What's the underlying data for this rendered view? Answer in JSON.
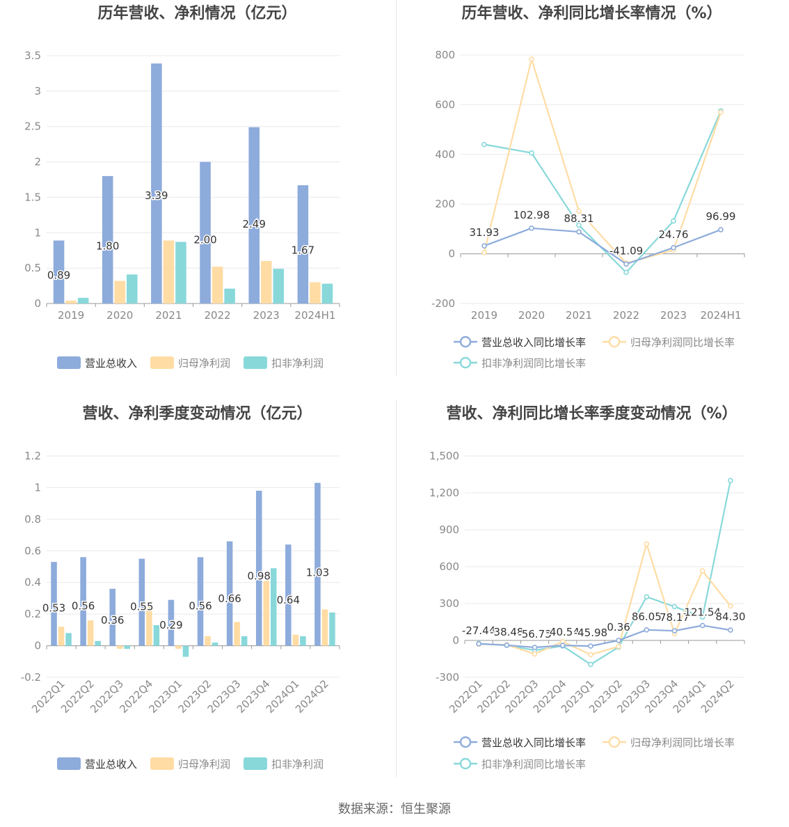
{
  "colors": {
    "revenue": "#8dabdb",
    "net_profit": "#ffdca4",
    "deducted_profit": "#88d8da",
    "grid": "#e8e8ee",
    "axis_text": "#888888",
    "title_text": "#444444",
    "label_text": "#333333"
  },
  "source": "数据来源：恒生聚源",
  "chart_data": [
    {
      "type": "bar",
      "title": "历年营收、净利情况（亿元）",
      "categories": [
        "2019",
        "2020",
        "2021",
        "2022",
        "2023",
        "2024H1"
      ],
      "ylim": [
        0,
        3.5
      ],
      "yticks": [
        0,
        0.5,
        1,
        1.5,
        2,
        2.5,
        3,
        3.5
      ],
      "ytick_labels": [
        "0",
        "0.5",
        "1",
        "1.5",
        "2",
        "2.5",
        "3",
        "3.5"
      ],
      "grid": true,
      "legend": "bottom",
      "series": [
        {
          "name": "营业总收入",
          "values": [
            0.89,
            1.8,
            3.39,
            2.0,
            2.49,
            1.67
          ],
          "labels": [
            "0.89",
            "1.80",
            "3.39",
            "2.00",
            "2.49",
            "1.67"
          ]
        },
        {
          "name": "归母净利润",
          "values": [
            0.04,
            0.32,
            0.89,
            0.52,
            0.6,
            0.3
          ]
        },
        {
          "name": "扣非净利润",
          "values": [
            0.08,
            0.41,
            0.87,
            0.21,
            0.49,
            0.28
          ]
        }
      ]
    },
    {
      "type": "line",
      "title": "历年营收、净利同比增长率情况（%）",
      "categories": [
        "2019",
        "2020",
        "2021",
        "2022",
        "2023",
        "2024H1"
      ],
      "ylim": [
        -200,
        800
      ],
      "yticks": [
        -200,
        0,
        200,
        400,
        600,
        800
      ],
      "ytick_labels": [
        "-200",
        "0",
        "200",
        "400",
        "600",
        "800"
      ],
      "grid": true,
      "legend": "bottom",
      "series": [
        {
          "name": "营业总收入同比增长率",
          "values": [
            31.93,
            102.98,
            88.31,
            -41.09,
            24.76,
            96.99
          ],
          "labels": [
            "31.93",
            "102.98",
            "88.31",
            "-41.09",
            "24.76",
            "96.99"
          ]
        },
        {
          "name": "归母净利润同比增长率",
          "values": [
            5,
            783,
            172,
            -38,
            15,
            570
          ]
        },
        {
          "name": "扣非净利润同比增长率",
          "values": [
            440,
            406,
            115,
            -75,
            132,
            575
          ]
        }
      ]
    },
    {
      "type": "bar",
      "title": "营收、净利季度变动情况（亿元）",
      "categories": [
        "2022Q1",
        "2022Q2",
        "2022Q3",
        "2022Q4",
        "2023Q1",
        "2023Q2",
        "2023Q3",
        "2023Q4",
        "2024Q1",
        "2024Q2"
      ],
      "ylim": [
        -0.2,
        1.2
      ],
      "yticks": [
        -0.2,
        0,
        0.2,
        0.4,
        0.6,
        0.8,
        1,
        1.2
      ],
      "ytick_labels": [
        "-0.2",
        "0",
        "0.2",
        "0.4",
        "0.6",
        "0.8",
        "1",
        "1.2"
      ],
      "grid": true,
      "legend": "bottom",
      "series": [
        {
          "name": "营业总收入",
          "values": [
            0.53,
            0.56,
            0.36,
            0.55,
            0.29,
            0.56,
            0.66,
            0.98,
            0.64,
            1.03
          ],
          "labels": [
            "0.53",
            "0.56",
            "0.36",
            "0.55",
            "0.29",
            "0.56",
            "0.66",
            "0.98",
            "0.64",
            "1.03"
          ]
        },
        {
          "name": "归母净利润",
          "values": [
            0.12,
            0.16,
            -0.02,
            0.25,
            -0.02,
            0.06,
            0.15,
            0.41,
            0.07,
            0.23
          ]
        },
        {
          "name": "扣非净利润",
          "values": [
            0.08,
            0.03,
            -0.02,
            0.13,
            -0.07,
            0.02,
            0.06,
            0.49,
            0.06,
            0.21
          ]
        }
      ]
    },
    {
      "type": "line",
      "title": "营收、净利同比增长率季度变动情况（%）",
      "categories": [
        "2022Q1",
        "2022Q2",
        "2022Q3",
        "2022Q4",
        "2023Q1",
        "2023Q2",
        "2023Q3",
        "2023Q4",
        "2024Q1",
        "2024Q2"
      ],
      "ylim": [
        -300,
        1500
      ],
      "yticks": [
        -300,
        0,
        300,
        600,
        900,
        1200,
        1500
      ],
      "ytick_labels": [
        "-300",
        "0",
        "300",
        "600",
        "900",
        "1,200",
        "1,500"
      ],
      "grid": true,
      "legend": "bottom",
      "series": [
        {
          "name": "营业总收入同比增长率",
          "values": [
            -27.44,
            -38.48,
            -56.73,
            -40.54,
            -45.98,
            0.36,
            86.05,
            78.17,
            121.54,
            84.3
          ],
          "labels": [
            "-27.44",
            "-38.48",
            "-56.73",
            "-40.54",
            "-45.98",
            "0.36",
            "86.05",
            "78.17",
            "121.54",
            "84.30"
          ]
        },
        {
          "name": "归母净利润同比增长率",
          "values": [
            -30,
            -35,
            -110,
            -10,
            -115,
            -50,
            785,
            55,
            565,
            280
          ]
        },
        {
          "name": "扣非净利润同比增长率",
          "values": [
            -25,
            -40,
            -80,
            -45,
            -195,
            -55,
            355,
            275,
            190,
            1300
          ]
        }
      ]
    }
  ]
}
